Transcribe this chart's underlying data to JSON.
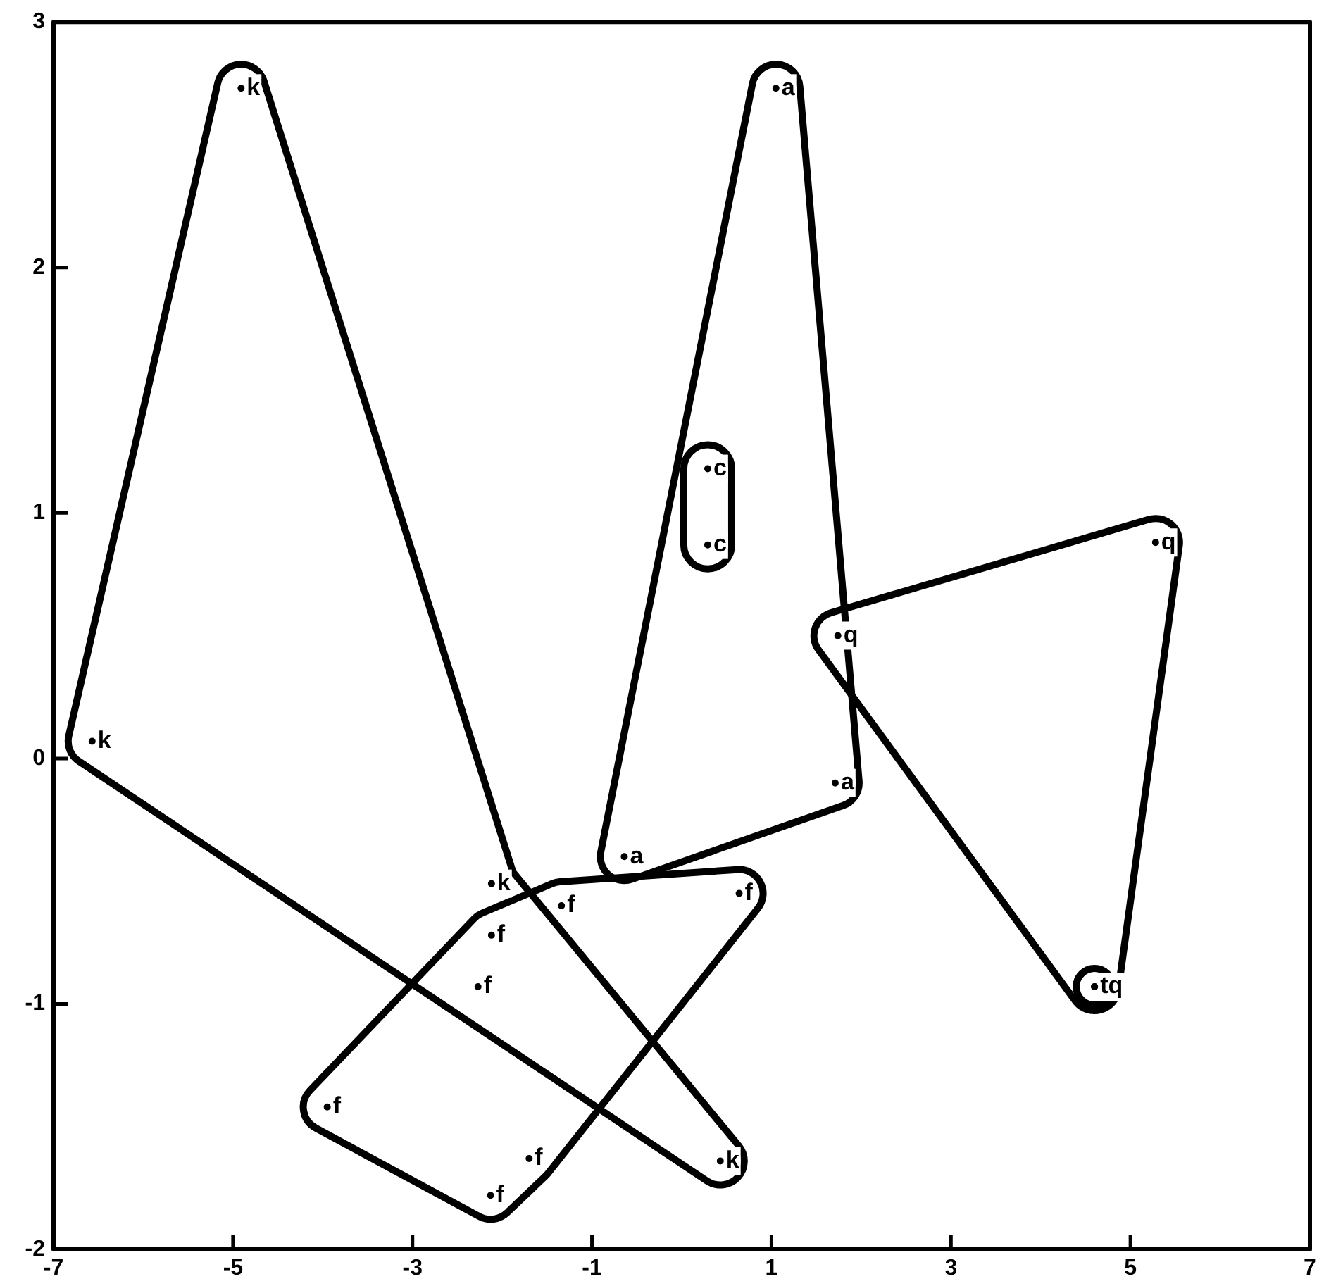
{
  "chart_data": {
    "type": "scatter",
    "xlim": [
      -7,
      7
    ],
    "ylim": [
      -2,
      3
    ],
    "xticks": [
      -7,
      -5,
      -3,
      -1,
      1,
      3,
      5,
      7
    ],
    "yticks": [
      -2,
      -1,
      0,
      1,
      2,
      3
    ],
    "grid": false,
    "legend": false,
    "series": [
      {
        "name": "k",
        "color": "#000000",
        "x": [
          -4.91,
          -6.57,
          0.43,
          -2.12
        ],
        "values": [
          2.73,
          0.07,
          -1.64,
          -0.51
        ]
      },
      {
        "name": "a",
        "color": "#000000",
        "x": [
          1.05,
          1.71,
          -0.64
        ],
        "values": [
          2.73,
          -0.1,
          -0.4
        ]
      },
      {
        "name": "c",
        "color": "#000000",
        "x": [
          0.29,
          0.29
        ],
        "values": [
          1.18,
          0.87
        ]
      },
      {
        "name": "t",
        "color": "#000000",
        "x": [
          4.6
        ],
        "values": [
          -0.93
        ]
      },
      {
        "name": "q",
        "color": "#000000",
        "x": [
          5.28,
          4.6,
          1.74
        ],
        "values": [
          0.88,
          -0.93,
          0.5
        ]
      },
      {
        "name": "f",
        "color": "#000000",
        "x": [
          0.64,
          -1.34,
          -2.12,
          -2.27,
          -3.95,
          -2.13,
          -1.7
        ],
        "values": [
          -0.55,
          -0.6,
          -0.72,
          -0.93,
          -1.42,
          -1.78,
          -1.63
        ]
      }
    ]
  }
}
